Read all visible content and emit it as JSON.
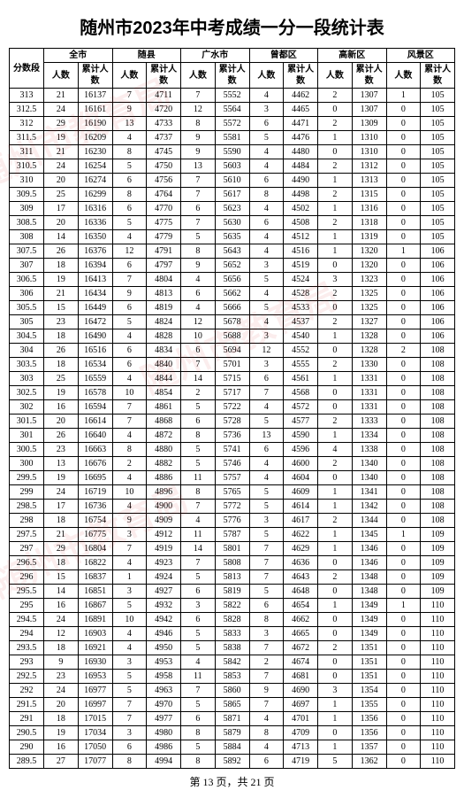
{
  "title": "随州市2023年中考成绩一分一段统计表",
  "footer_prefix": "第",
  "footer_page": "13",
  "footer_mid": "页，共",
  "footer_total": "21",
  "footer_suffix": "页",
  "header": {
    "score": "分数段",
    "regions": [
      "全市",
      "随县",
      "广水市",
      "曾都区",
      "高新区",
      "风景区"
    ],
    "count": "人数",
    "cumulative": "累计人数"
  },
  "rows": [
    {
      "s": "313",
      "v": [
        21,
        16137,
        7,
        4711,
        7,
        5552,
        4,
        4462,
        2,
        1307,
        1,
        105
      ]
    },
    {
      "s": "312.5",
      "v": [
        24,
        16161,
        9,
        4720,
        12,
        5564,
        3,
        4465,
        0,
        1307,
        0,
        105
      ]
    },
    {
      "s": "312",
      "v": [
        29,
        16190,
        13,
        4733,
        8,
        5572,
        6,
        4471,
        2,
        1309,
        0,
        105
      ]
    },
    {
      "s": "311.5",
      "v": [
        19,
        16209,
        4,
        4737,
        9,
        5581,
        5,
        4476,
        1,
        1310,
        0,
        105
      ]
    },
    {
      "s": "311",
      "v": [
        21,
        16230,
        8,
        4745,
        9,
        5590,
        4,
        4480,
        0,
        1310,
        0,
        105
      ]
    },
    {
      "s": "310.5",
      "v": [
        24,
        16254,
        5,
        4750,
        13,
        5603,
        4,
        4484,
        2,
        1312,
        0,
        105
      ]
    },
    {
      "s": "310",
      "v": [
        20,
        16274,
        6,
        4756,
        7,
        5610,
        6,
        4490,
        1,
        1313,
        0,
        105
      ]
    },
    {
      "s": "309.5",
      "v": [
        25,
        16299,
        8,
        4764,
        7,
        5617,
        8,
        4498,
        2,
        1315,
        0,
        105
      ]
    },
    {
      "s": "309",
      "v": [
        17,
        16316,
        6,
        4770,
        6,
        5623,
        4,
        4502,
        1,
        1316,
        0,
        105
      ]
    },
    {
      "s": "308.5",
      "v": [
        20,
        16336,
        5,
        4775,
        7,
        5630,
        6,
        4508,
        2,
        1318,
        0,
        105
      ]
    },
    {
      "s": "308",
      "v": [
        14,
        16350,
        4,
        4779,
        5,
        5635,
        4,
        4512,
        1,
        1319,
        0,
        105
      ]
    },
    {
      "s": "307.5",
      "v": [
        26,
        16376,
        12,
        4791,
        8,
        5643,
        4,
        4516,
        1,
        1320,
        1,
        106
      ]
    },
    {
      "s": "307",
      "v": [
        18,
        16394,
        6,
        4797,
        9,
        5652,
        3,
        4519,
        0,
        1320,
        0,
        106
      ]
    },
    {
      "s": "306.5",
      "v": [
        19,
        16413,
        7,
        4804,
        4,
        5656,
        5,
        4524,
        3,
        1323,
        0,
        106
      ]
    },
    {
      "s": "306",
      "v": [
        21,
        16434,
        9,
        4813,
        6,
        5662,
        4,
        4528,
        2,
        1325,
        0,
        106
      ]
    },
    {
      "s": "305.5",
      "v": [
        15,
        16449,
        6,
        4819,
        4,
        5666,
        5,
        4533,
        0,
        1325,
        0,
        106
      ]
    },
    {
      "s": "305",
      "v": [
        23,
        16472,
        5,
        4824,
        12,
        5678,
        4,
        4537,
        2,
        1327,
        0,
        106
      ]
    },
    {
      "s": "304.5",
      "v": [
        18,
        16490,
        4,
        4828,
        10,
        5688,
        3,
        4540,
        1,
        1328,
        0,
        106
      ]
    },
    {
      "s": "304",
      "v": [
        26,
        16516,
        6,
        4834,
        6,
        5694,
        12,
        4552,
        0,
        1328,
        2,
        108
      ]
    },
    {
      "s": "303.5",
      "v": [
        18,
        16534,
        6,
        4840,
        7,
        5701,
        3,
        4555,
        2,
        1330,
        0,
        108
      ]
    },
    {
      "s": "303",
      "v": [
        25,
        16559,
        4,
        4844,
        14,
        5715,
        6,
        4561,
        1,
        1331,
        0,
        108
      ]
    },
    {
      "s": "302.5",
      "v": [
        19,
        16578,
        10,
        4854,
        2,
        5717,
        7,
        4568,
        0,
        1331,
        0,
        108
      ]
    },
    {
      "s": "302",
      "v": [
        16,
        16594,
        7,
        4861,
        5,
        5722,
        4,
        4572,
        0,
        1331,
        0,
        108
      ]
    },
    {
      "s": "301.5",
      "v": [
        20,
        16614,
        7,
        4868,
        6,
        5728,
        5,
        4577,
        2,
        1333,
        0,
        108
      ]
    },
    {
      "s": "301",
      "v": [
        26,
        16640,
        4,
        4872,
        8,
        5736,
        13,
        4590,
        1,
        1334,
        0,
        108
      ]
    },
    {
      "s": "300.5",
      "v": [
        23,
        16663,
        8,
        4880,
        5,
        5741,
        6,
        4596,
        4,
        1338,
        0,
        108
      ]
    },
    {
      "s": "300",
      "v": [
        13,
        16676,
        2,
        4882,
        5,
        5746,
        4,
        4600,
        2,
        1340,
        0,
        108
      ]
    },
    {
      "s": "299.5",
      "v": [
        19,
        16695,
        4,
        4886,
        11,
        5757,
        4,
        4604,
        0,
        1340,
        0,
        108
      ]
    },
    {
      "s": "299",
      "v": [
        24,
        16719,
        10,
        4896,
        8,
        5765,
        5,
        4609,
        1,
        1341,
        0,
        108
      ]
    },
    {
      "s": "298.5",
      "v": [
        17,
        16736,
        4,
        4900,
        7,
        5772,
        5,
        4614,
        1,
        1342,
        0,
        108
      ]
    },
    {
      "s": "298",
      "v": [
        18,
        16754,
        9,
        4909,
        4,
        5776,
        3,
        4617,
        2,
        1344,
        0,
        108
      ]
    },
    {
      "s": "297.5",
      "v": [
        21,
        16775,
        3,
        4912,
        11,
        5787,
        5,
        4622,
        1,
        1345,
        1,
        109
      ]
    },
    {
      "s": "297",
      "v": [
        29,
        16804,
        7,
        4919,
        14,
        5801,
        7,
        4629,
        1,
        1346,
        0,
        109
      ]
    },
    {
      "s": "296.5",
      "v": [
        18,
        16822,
        4,
        4923,
        7,
        5808,
        7,
        4636,
        0,
        1346,
        0,
        109
      ]
    },
    {
      "s": "296",
      "v": [
        15,
        16837,
        1,
        4924,
        5,
        5813,
        7,
        4643,
        2,
        1348,
        0,
        109
      ]
    },
    {
      "s": "295.5",
      "v": [
        14,
        16851,
        3,
        4927,
        6,
        5819,
        5,
        4648,
        0,
        1348,
        0,
        109
      ]
    },
    {
      "s": "295",
      "v": [
        16,
        16867,
        5,
        4932,
        3,
        5822,
        6,
        4654,
        1,
        1349,
        1,
        110
      ]
    },
    {
      "s": "294.5",
      "v": [
        24,
        16891,
        10,
        4942,
        6,
        5828,
        8,
        4662,
        0,
        1349,
        0,
        110
      ]
    },
    {
      "s": "294",
      "v": [
        12,
        16903,
        4,
        4946,
        5,
        5833,
        3,
        4665,
        0,
        1349,
        0,
        110
      ]
    },
    {
      "s": "293.5",
      "v": [
        18,
        16921,
        4,
        4950,
        5,
        5838,
        7,
        4672,
        2,
        1351,
        0,
        110
      ]
    },
    {
      "s": "293",
      "v": [
        9,
        16930,
        3,
        4953,
        4,
        5842,
        2,
        4674,
        0,
        1351,
        0,
        110
      ]
    },
    {
      "s": "292.5",
      "v": [
        23,
        16953,
        5,
        4958,
        11,
        5853,
        7,
        4681,
        0,
        1351,
        0,
        110
      ]
    },
    {
      "s": "292",
      "v": [
        24,
        16977,
        5,
        4963,
        7,
        5860,
        9,
        4690,
        3,
        1354,
        0,
        110
      ]
    },
    {
      "s": "291.5",
      "v": [
        20,
        16997,
        7,
        4970,
        5,
        5865,
        7,
        4697,
        1,
        1355,
        0,
        110
      ]
    },
    {
      "s": "291",
      "v": [
        18,
        17015,
        7,
        4977,
        6,
        5871,
        4,
        4701,
        1,
        1356,
        0,
        110
      ]
    },
    {
      "s": "290.5",
      "v": [
        19,
        17034,
        3,
        4980,
        8,
        5879,
        8,
        4709,
        0,
        1356,
        0,
        110
      ]
    },
    {
      "s": "290",
      "v": [
        16,
        17050,
        6,
        4986,
        5,
        5884,
        4,
        4713,
        1,
        1357,
        0,
        110
      ]
    },
    {
      "s": "289.5",
      "v": [
        27,
        17077,
        8,
        4994,
        8,
        5892,
        6,
        4719,
        5,
        1362,
        0,
        110
      ]
    }
  ]
}
